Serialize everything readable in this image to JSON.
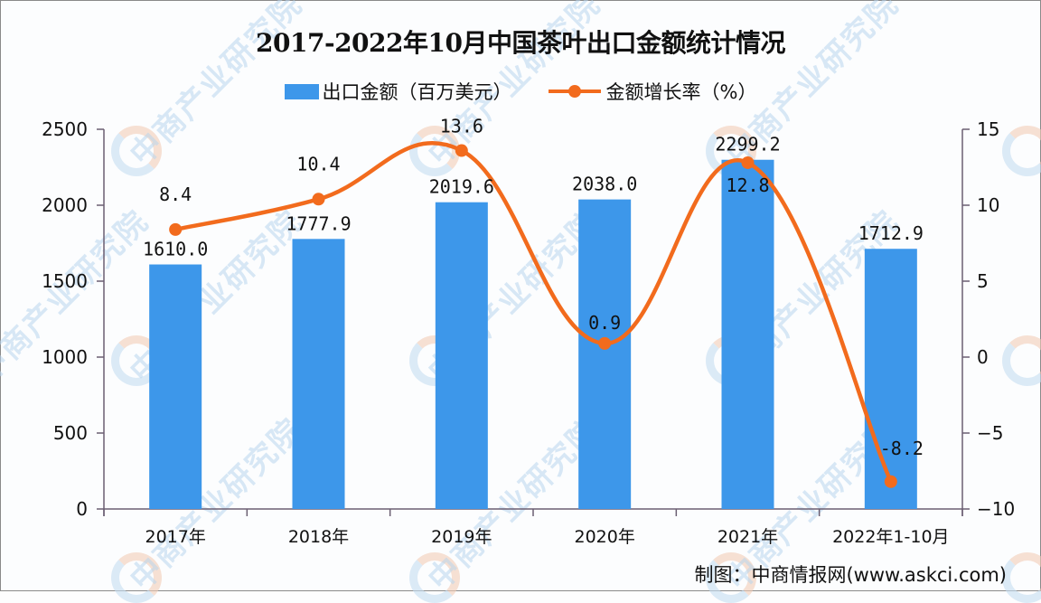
{
  "chart_data": {
    "type": "bar+line",
    "title": "2017-2022年10月中国茶叶出口金额统计情况",
    "categories": [
      "2017年",
      "2018年",
      "2019年",
      "2020年",
      "2021年",
      "2022年1-10月"
    ],
    "series": [
      {
        "name": "出口金额（百万美元）",
        "type": "bar",
        "axis": "left",
        "color": "#3d97ea",
        "values": [
          1610.0,
          1777.9,
          2019.6,
          2038.0,
          2299.2,
          1712.9
        ],
        "labels": [
          "1610.0",
          "1777.9",
          "2019.6",
          "2038.0",
          "2299.2",
          "1712.9"
        ]
      },
      {
        "name": "金额增长率（%）",
        "type": "line",
        "axis": "right",
        "color": "#f26b1d",
        "values": [
          8.4,
          10.4,
          13.6,
          0.9,
          12.8,
          -8.2
        ],
        "labels": [
          "8.4",
          "10.4",
          "13.6",
          "0.9",
          "12.8",
          "-8.2"
        ]
      }
    ],
    "left_axis": {
      "ylim": [
        0,
        2500
      ],
      "ticks": [
        "0",
        "500",
        "1000",
        "1500",
        "2000",
        "2500"
      ]
    },
    "right_axis": {
      "ylim": [
        -10,
        15
      ],
      "ticks": [
        "-10",
        "-5",
        "0",
        "5",
        "10",
        "15"
      ]
    },
    "legend_position": "top",
    "grid": false
  },
  "legend": {
    "bar_label": "出口金额（百万美元）",
    "line_label": "金额增长率（%）"
  },
  "footer": {
    "source": "制图：中商情报网(www.askci.com)"
  },
  "watermark": {
    "text": "中商产业研究院"
  }
}
